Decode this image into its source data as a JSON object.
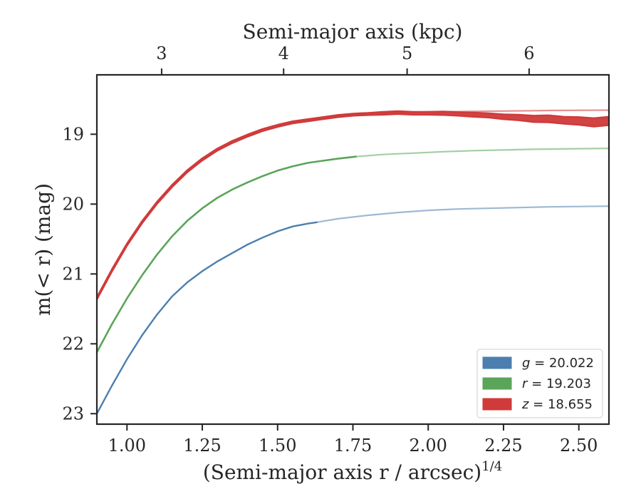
{
  "chart_data": {
    "type": "line",
    "xlabel": "(Semi-major axis r / arcsec)",
    "xlabel_exponent": "1/4",
    "ylabel": "m(< r) (mag)",
    "top_xlabel": "Semi-major axis (kpc)",
    "xlim": [
      0.9,
      2.6
    ],
    "ylim": [
      23.15,
      18.15
    ],
    "y_inverted": true,
    "x_ticks": [
      1.0,
      1.25,
      1.5,
      1.75,
      2.0,
      2.25,
      2.5
    ],
    "x_tick_labels": [
      "1.00",
      "1.25",
      "1.50",
      "1.75",
      "2.00",
      "2.25",
      "2.50"
    ],
    "y_ticks": [
      19,
      20,
      21,
      22,
      23
    ],
    "y_tick_labels": [
      "19",
      "20",
      "21",
      "22",
      "23"
    ],
    "top_ticks": [
      {
        "x": 1.115,
        "label": "3"
      },
      {
        "x": 1.52,
        "label": "4"
      },
      {
        "x": 1.93,
        "label": "5"
      },
      {
        "x": 2.335,
        "label": "6"
      }
    ],
    "legend_position": "lower-right",
    "series": [
      {
        "name": "g = 20.022",
        "name_var": "g",
        "name_value": "20.022",
        "color": "#4c7fb0",
        "measured_x": [
          0.9,
          0.95,
          1.0,
          1.05,
          1.1,
          1.15,
          1.2,
          1.25,
          1.3,
          1.35,
          1.4,
          1.45,
          1.5,
          1.55,
          1.6,
          1.63
        ],
        "measured_y": [
          23.0,
          22.6,
          22.22,
          21.88,
          21.58,
          21.32,
          21.12,
          20.96,
          20.82,
          20.7,
          20.58,
          20.48,
          20.39,
          20.32,
          20.28,
          20.26
        ],
        "model_x": [
          1.63,
          1.7,
          1.8,
          1.9,
          2.0,
          2.1,
          2.2,
          2.3,
          2.4,
          2.5,
          2.6
        ],
        "model_y": [
          20.26,
          20.21,
          20.16,
          20.12,
          20.09,
          20.07,
          20.06,
          20.05,
          20.04,
          20.035,
          20.03
        ],
        "band_width": 2.4
      },
      {
        "name": "r = 19.203",
        "name_var": "r",
        "name_value": "19.203",
        "color": "#5aa55a",
        "measured_x": [
          0.9,
          0.95,
          1.0,
          1.05,
          1.1,
          1.15,
          1.2,
          1.25,
          1.3,
          1.35,
          1.4,
          1.45,
          1.5,
          1.55,
          1.6,
          1.65,
          1.7,
          1.76
        ],
        "measured_y": [
          22.12,
          21.72,
          21.35,
          21.02,
          20.72,
          20.46,
          20.24,
          20.06,
          19.91,
          19.79,
          19.69,
          19.6,
          19.52,
          19.46,
          19.41,
          19.38,
          19.35,
          19.32
        ],
        "model_x": [
          1.76,
          1.85,
          1.95,
          2.05,
          2.15,
          2.25,
          2.35,
          2.45,
          2.55,
          2.6
        ],
        "model_y": [
          19.32,
          19.29,
          19.27,
          19.25,
          19.235,
          19.225,
          19.215,
          19.21,
          19.205,
          19.203
        ],
        "band_width": 2.6
      },
      {
        "name": "z = 18.655",
        "name_var": "z",
        "name_value": "18.655",
        "color": "#d03a3a",
        "measured_x": [
          0.9,
          0.95,
          1.0,
          1.05,
          1.1,
          1.15,
          1.2,
          1.25,
          1.3,
          1.35,
          1.4,
          1.45,
          1.5,
          1.55,
          1.6,
          1.65,
          1.7,
          1.75,
          1.8,
          1.85,
          1.9,
          1.95,
          2.0,
          2.05,
          2.1,
          2.15,
          2.2,
          2.25,
          2.3,
          2.35,
          2.4,
          2.45,
          2.5,
          2.55,
          2.6
        ],
        "measured_y": [
          21.35,
          20.95,
          20.58,
          20.26,
          19.98,
          19.74,
          19.53,
          19.36,
          19.22,
          19.11,
          19.02,
          18.94,
          18.88,
          18.83,
          18.8,
          18.77,
          18.74,
          18.72,
          18.71,
          18.7,
          18.69,
          18.7,
          18.7,
          18.7,
          18.71,
          18.72,
          18.73,
          18.75,
          18.76,
          18.78,
          18.78,
          18.8,
          18.81,
          18.83,
          18.81
        ],
        "band_halfwidth": [
          0.015,
          0.015,
          0.015,
          0.015,
          0.015,
          0.015,
          0.015,
          0.015,
          0.015,
          0.015,
          0.015,
          0.015,
          0.015,
          0.015,
          0.015,
          0.015,
          0.015,
          0.015,
          0.015,
          0.02,
          0.02,
          0.02,
          0.02,
          0.025,
          0.025,
          0.03,
          0.03,
          0.035,
          0.04,
          0.045,
          0.05,
          0.05,
          0.055,
          0.06,
          0.06
        ],
        "model_x": [
          1.6,
          1.8,
          2.0,
          2.2,
          2.4,
          2.6
        ],
        "model_y": [
          18.8,
          18.7,
          18.68,
          18.67,
          18.66,
          18.655
        ]
      }
    ]
  }
}
